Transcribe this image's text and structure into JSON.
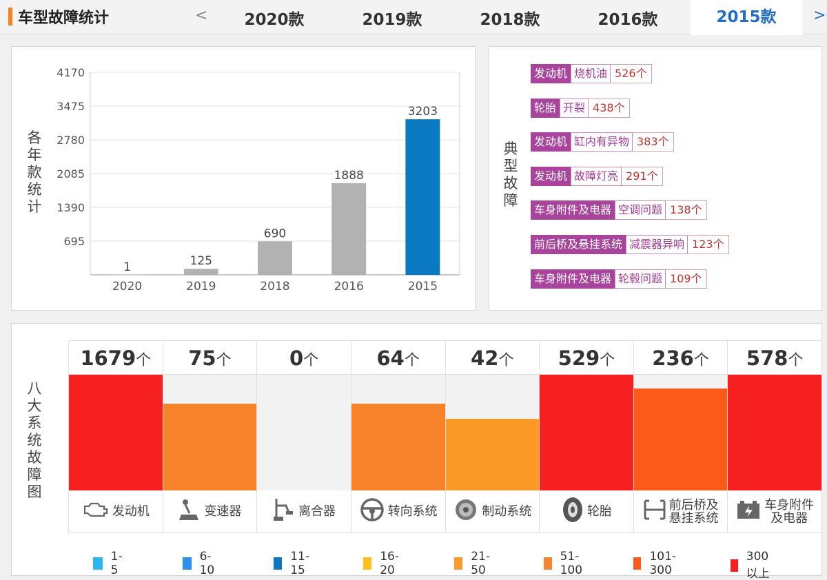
{
  "header": {
    "title": "车型故障统计",
    "prev_arrow": "<",
    "next_arrow": ">",
    "tabs": [
      {
        "label": "2020款",
        "active": false
      },
      {
        "label": "2019款",
        "active": false
      },
      {
        "label": "2018款",
        "active": false
      },
      {
        "label": "2016款",
        "active": false
      },
      {
        "label": "2015款",
        "active": true
      }
    ]
  },
  "colors": {
    "brand_accent": "#f58220",
    "active_tab": "#1f6fc6",
    "bar_gray": "#b2b2b2",
    "bar_highlight": "#0b79c1",
    "fault_category": "#a9439b"
  },
  "chart_data": [
    {
      "type": "bar",
      "title": "",
      "xlabel": "",
      "ylabel": "各年款统计",
      "categories": [
        "2020",
        "2019",
        "2018",
        "2016",
        "2015"
      ],
      "values": [
        1,
        125,
        690,
        1888,
        3203
      ],
      "highlighted_category": "2015",
      "yticks": [
        695,
        1390,
        2085,
        2780,
        3475,
        4170
      ],
      "ylim": [
        0,
        4170
      ],
      "grid": true
    },
    {
      "type": "bar",
      "title": "",
      "ylabel": "八大系统故障图",
      "categories": [
        "发动机",
        "变速器",
        "离合器",
        "转向系统",
        "制动系统",
        "轮胎",
        "前后桥及悬挂系统",
        "车身附件及电器"
      ],
      "values": [
        1679,
        75,
        0,
        64,
        42,
        529,
        236,
        578
      ],
      "unit": "个",
      "bar_fill_fraction": [
        1.0,
        0.75,
        0.0,
        0.75,
        0.62,
        1.0,
        0.88,
        1.0
      ],
      "bar_colors": [
        "#f5201f",
        "#f9832a",
        "#f2f2f2",
        "#f9832a",
        "#fc9a27",
        "#f5201f",
        "#fb5a18",
        "#f5201f"
      ],
      "legend": [
        {
          "label": "1-5",
          "color": "#29b6f2"
        },
        {
          "label": "6-10",
          "color": "#2d8ef0"
        },
        {
          "label": "11-15",
          "color": "#0b79c1"
        },
        {
          "label": "16-20",
          "color": "#fcc21a"
        },
        {
          "label": "21-50",
          "color": "#fc9a27"
        },
        {
          "label": "51-100",
          "color": "#f9832a"
        },
        {
          "label": "101-300",
          "color": "#fb5a18"
        },
        {
          "label": "300以上",
          "color": "#f5201f"
        }
      ]
    }
  ],
  "typical_faults": {
    "label": "典型故障",
    "items": [
      {
        "category": "发动机",
        "type": "烧机油",
        "count": "526个"
      },
      {
        "category": "轮胎",
        "type": "开裂",
        "count": "438个"
      },
      {
        "category": "发动机",
        "type": "缸内有异物",
        "count": "383个"
      },
      {
        "category": "发动机",
        "type": "故障灯亮",
        "count": "291个"
      },
      {
        "category": "车身附件及电器",
        "type": "空调问题",
        "count": "138个"
      },
      {
        "category": "前后桥及悬挂系统",
        "type": "减震器异响",
        "count": "123个"
      },
      {
        "category": "车身附件及电器",
        "type": "轮毂问题",
        "count": "109个"
      }
    ]
  },
  "systems": {
    "label_lines": [
      "发动机",
      "变速器",
      "离合器",
      "转向系统",
      "制动系统",
      "轮胎",
      "前后桥及\n悬挂系统",
      "车身附件\n及电器"
    ],
    "icons": [
      "engine-icon",
      "gear-shift-icon",
      "clutch-pedal-icon",
      "steering-wheel-icon",
      "brake-disc-icon",
      "tire-icon",
      "suspension-icon",
      "battery-icon"
    ]
  }
}
